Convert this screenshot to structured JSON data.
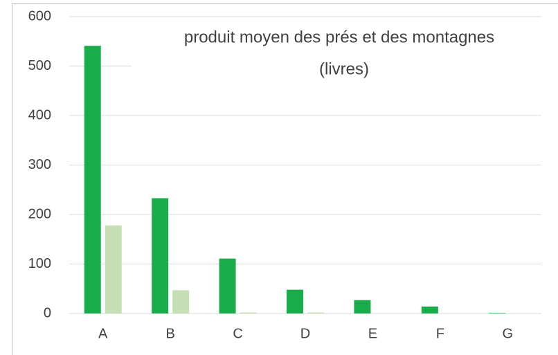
{
  "chart_data": {
    "type": "bar",
    "title": "produit moyen des prés et des montagnes",
    "subtitle": "(livres)",
    "categories": [
      "A",
      "B",
      "C",
      "D",
      "E",
      "F",
      "G"
    ],
    "series": [
      {
        "color": "#1aab4b",
        "values": [
          541,
          233,
          111,
          48,
          27,
          14,
          1
        ]
      },
      {
        "color": "#c5e0b4",
        "values": [
          178,
          47,
          2,
          2,
          0,
          0,
          0
        ]
      }
    ],
    "ylim": [
      0,
      600
    ],
    "yticks": [
      0,
      100,
      200,
      300,
      400,
      500,
      600
    ],
    "grid": true
  }
}
